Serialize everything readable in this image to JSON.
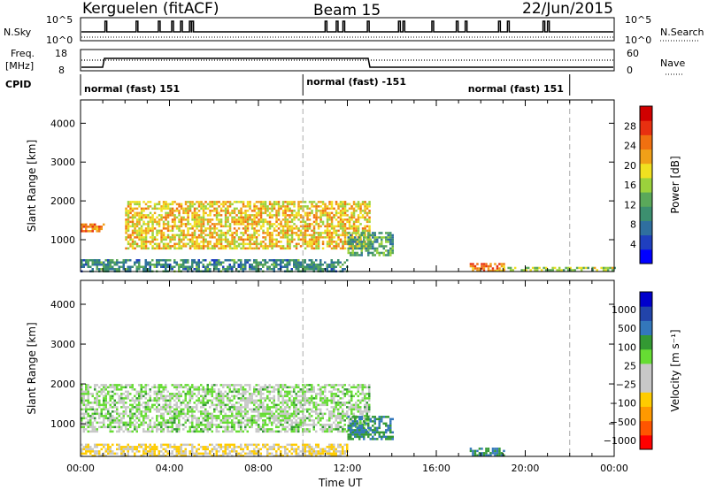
{
  "header": {
    "station": "Kerguelen (fitACF)",
    "beam": "Beam 15",
    "date": "22/Jun/2015"
  },
  "strip_labels": {
    "nsky": "N.Sky",
    "nsearch": "N.Search",
    "freq": "Freq.",
    "freq_unit": "[MHz]",
    "nave": "Nave",
    "cpid": "CPID"
  },
  "noise_axis": {
    "left_top": "10^5",
    "left_bottom": "10^0",
    "right_top": "10^5",
    "right_bottom": "10^0"
  },
  "freq_axis": {
    "left_ticks": [
      "18",
      "8"
    ],
    "right_ticks": [
      "60",
      "0"
    ]
  },
  "cpid_segments": [
    {
      "label": "normal (fast) 151",
      "start_h": 0,
      "end_h": 10
    },
    {
      "label": "normal (fast) -151",
      "start_h": 10,
      "end_h": 22
    },
    {
      "label": "normal (fast) 151",
      "start_h": 22,
      "end_h": 24
    }
  ],
  "colors": {
    "power": [
      "#0000ff",
      "#1f3fbf",
      "#2f6f9f",
      "#3c8f6f",
      "#5aa85a",
      "#9bd23c",
      "#f0e020",
      "#f0a018",
      "#f07010",
      "#e83010",
      "#d00000"
    ],
    "velocity": [
      "#ff0000",
      "#ff5500",
      "#ff9900",
      "#ffcc00",
      "#c8c8c8",
      "#c8c8c8",
      "#66dd33",
      "#339933",
      "#3377bb",
      "#2244aa",
      "#0000cc"
    ],
    "ground": "#c8c8c8"
  },
  "chart_data": [
    {
      "type": "heatmap",
      "name": "power",
      "xlabel": "Time UT",
      "ylabel": "Slant Range [km]",
      "xlim": [
        0,
        24
      ],
      "ylim": [
        180,
        4600
      ],
      "x_ticks": [
        "00:00",
        "04:00",
        "08:00",
        "12:00",
        "16:00",
        "20:00",
        "00:00"
      ],
      "y_ticks": [
        1000,
        2000,
        3000,
        4000
      ],
      "colorbar": {
        "label": "Power [dB]",
        "ticks": [
          4,
          8,
          12,
          16,
          20,
          24,
          28
        ],
        "range": [
          0,
          32
        ]
      },
      "regions": [
        {
          "t0": 0.0,
          "t1": 1.0,
          "r0": 1200,
          "r1": 1420,
          "value": 24
        },
        {
          "t0": 2.0,
          "t1": 13.0,
          "r0": 800,
          "r1": 2000,
          "value": 20
        },
        {
          "t0": 0.0,
          "t1": 12.0,
          "r0": 200,
          "r1": 500,
          "value": 10
        },
        {
          "t0": 17.5,
          "t1": 19.0,
          "r0": 200,
          "r1": 400,
          "value": 24
        },
        {
          "t0": 12.0,
          "t1": 14.0,
          "r0": 600,
          "r1": 1200,
          "value": 12
        },
        {
          "t0": 19.0,
          "t1": 24.0,
          "r0": 200,
          "r1": 300,
          "value": 16
        }
      ]
    },
    {
      "type": "heatmap",
      "name": "velocity",
      "xlabel": "Time UT",
      "ylabel": "Slant Range [km]",
      "xlim": [
        0,
        24
      ],
      "ylim": [
        180,
        4600
      ],
      "x_ticks": [
        "00:00",
        "04:00",
        "08:00",
        "12:00",
        "16:00",
        "20:00",
        "00:00"
      ],
      "y_ticks": [
        1000,
        2000,
        3000,
        4000
      ],
      "colorbar": {
        "label": "Velocity [m s⁻¹]",
        "ticks": [
          "1000",
          "500",
          "100",
          "25",
          "−25",
          "−100",
          "−500",
          "−1000"
        ]
      },
      "regions": [
        {
          "t0": 0.0,
          "t1": 13.0,
          "r0": 800,
          "r1": 2000,
          "value": 0
        },
        {
          "t0": 12.0,
          "t1": 14.0,
          "r0": 600,
          "r1": 1200,
          "value": 100
        },
        {
          "t0": 0.0,
          "t1": 12.0,
          "r0": 200,
          "r1": 500,
          "value": -100
        },
        {
          "t0": 17.5,
          "t1": 19.0,
          "r0": 200,
          "r1": 400,
          "value": 100
        }
      ]
    }
  ],
  "dashed_markers_h": [
    10,
    22
  ]
}
